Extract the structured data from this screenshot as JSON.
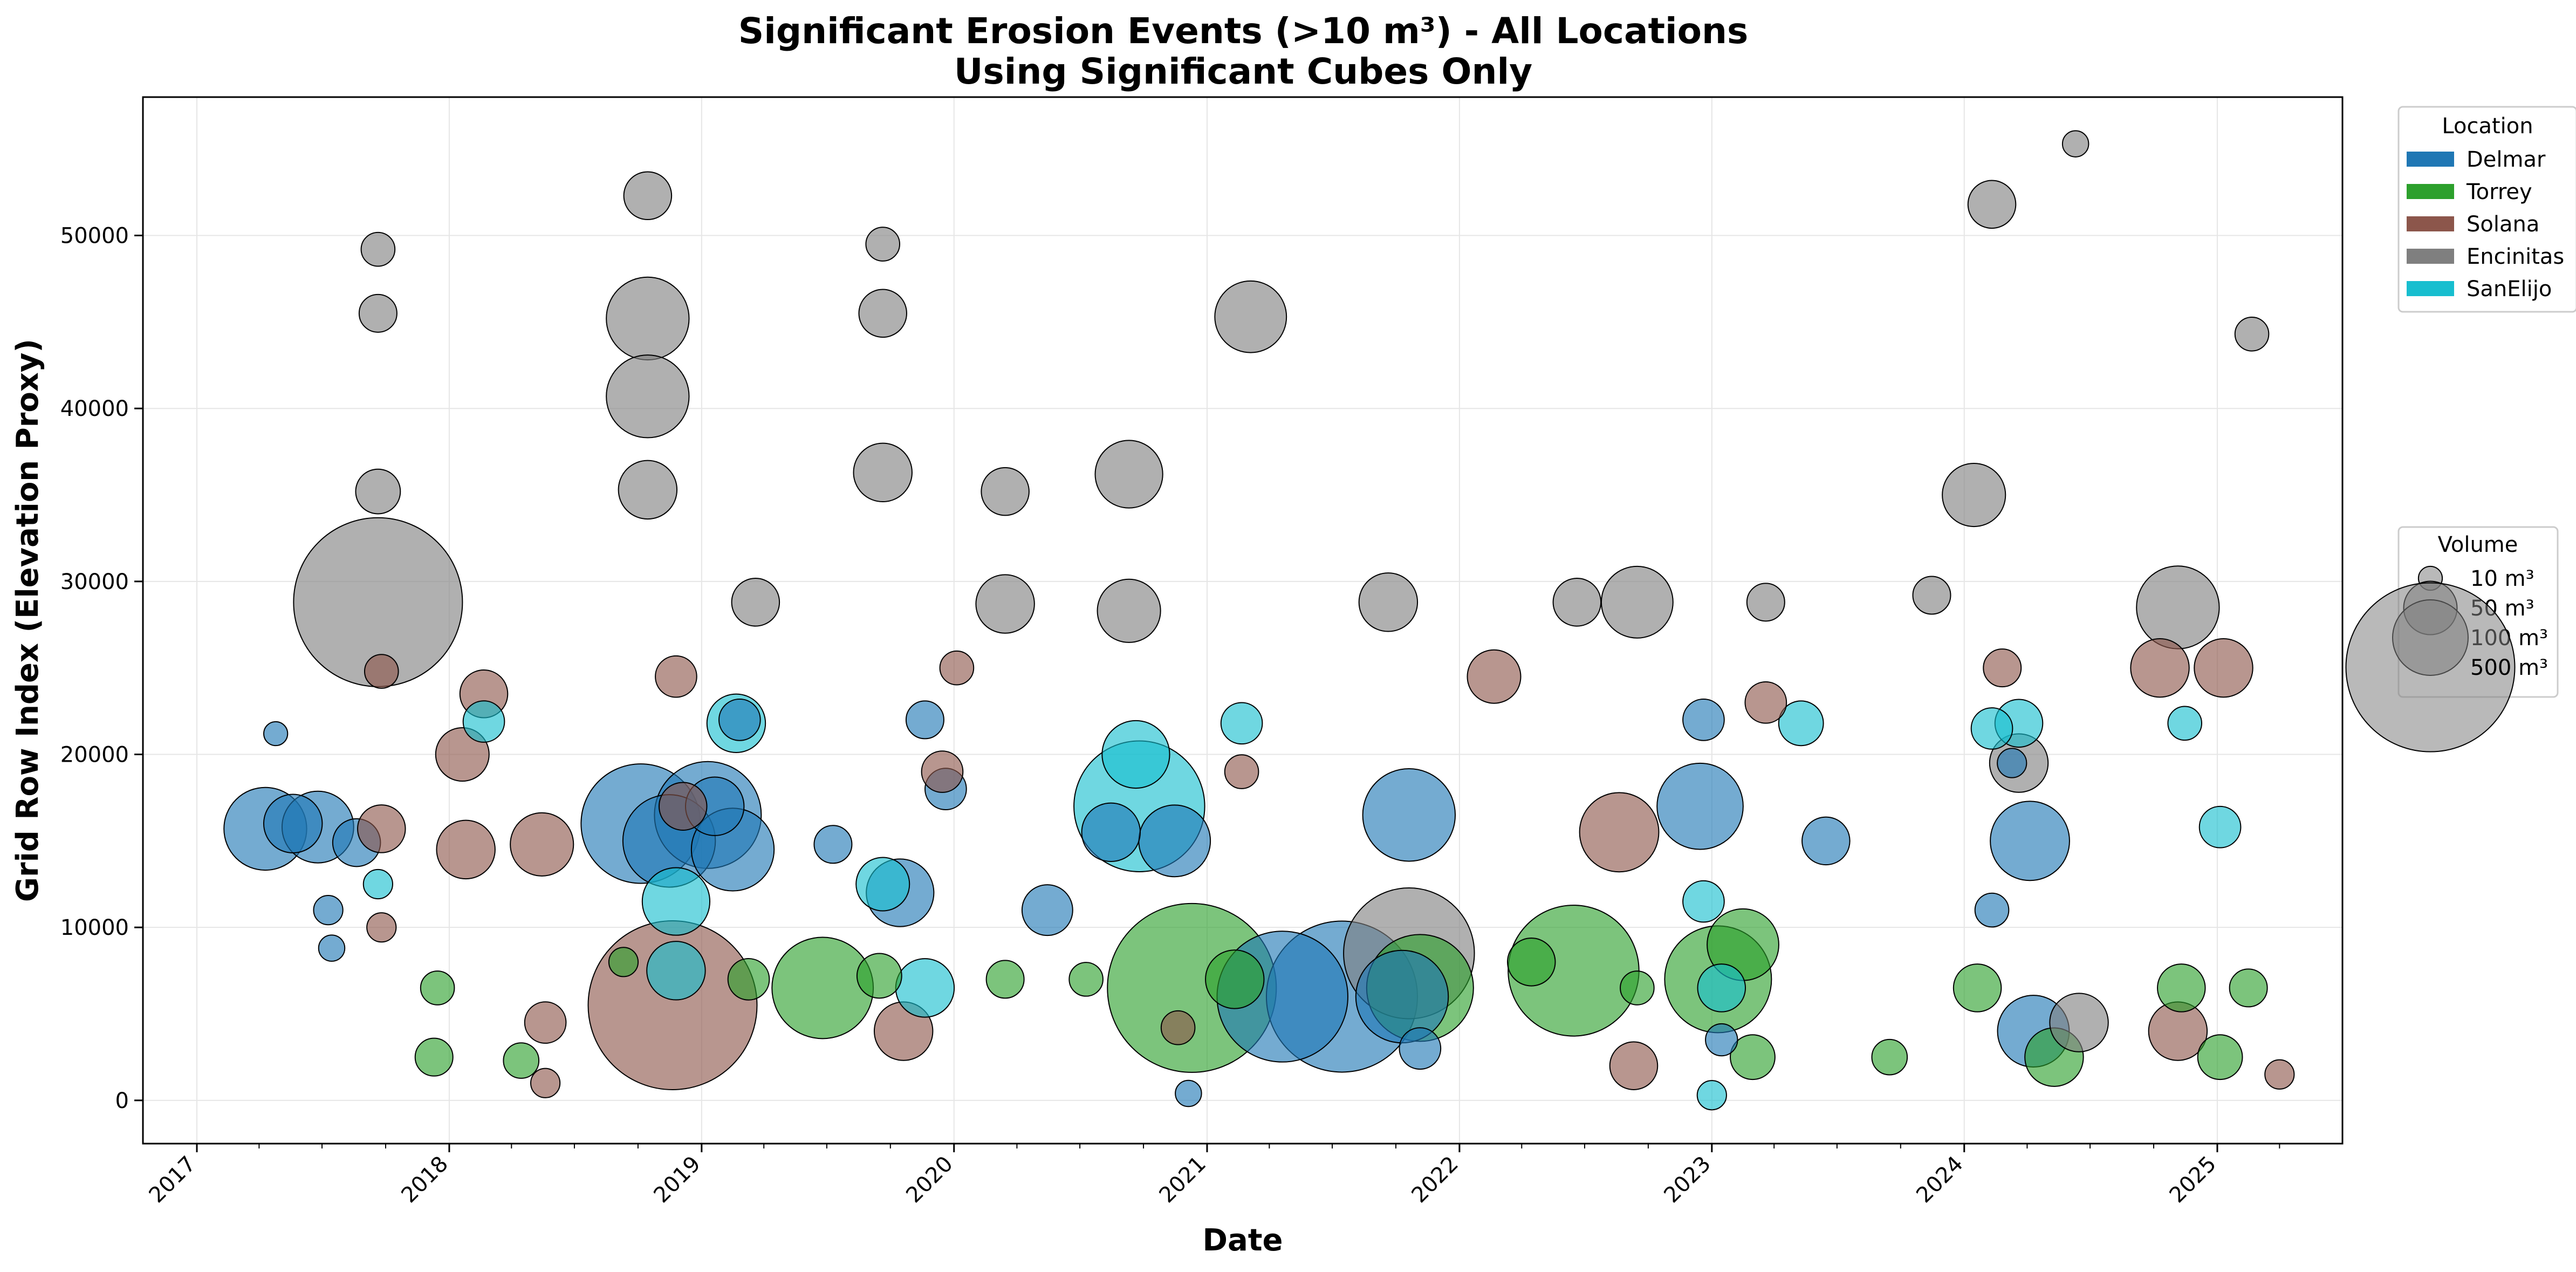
{
  "chart_data": {
    "type": "scatter",
    "title": "Significant Erosion Events (>10 m³) - All Locations",
    "subtitle": "Using Significant Cubes Only",
    "xlabel": "Date",
    "ylabel": "Grid Row Index (Elevation Proxy)",
    "x_ticks": [
      "2017",
      "2018",
      "2019",
      "2020",
      "2021",
      "2022",
      "2023",
      "2024",
      "2025"
    ],
    "y_ticks": [
      "0",
      "10000",
      "20000",
      "30000",
      "40000",
      "50000"
    ],
    "xlim": [
      "2016-10-15",
      "2025-07-01"
    ],
    "ylim": [
      -2500,
      58000
    ],
    "grid": true,
    "legend_placement": "outside right",
    "location_legend": {
      "title": "Location",
      "items": [
        {
          "name": "Delmar",
          "color": "#1f77b4"
        },
        {
          "name": "Torrey",
          "color": "#2ca02c"
        },
        {
          "name": "Solana",
          "color": "#8c564b"
        },
        {
          "name": "Encinitas",
          "color": "#7f7f7f"
        },
        {
          "name": "SanElijo",
          "color": "#17becf"
        }
      ]
    },
    "volume_legend": {
      "title": "Volume",
      "items": [
        {
          "label": "10 m³",
          "volume": 10
        },
        {
          "label": "50 m³",
          "volume": 50
        },
        {
          "label": "100 m³",
          "volume": 100
        },
        {
          "label": "500 m³",
          "volume": 500
        }
      ]
    },
    "series": [
      {
        "name": "Delmar",
        "color": "#1f77b4",
        "points": [
          {
            "x": "2017-04-10",
            "y": 15700,
            "volume": 120
          },
          {
            "x": "2017-05-20",
            "y": 16000,
            "volume": 60
          },
          {
            "x": "2017-06-25",
            "y": 15800,
            "volume": 90
          },
          {
            "x": "2017-07-10",
            "y": 11000,
            "volume": 15
          },
          {
            "x": "2017-07-15",
            "y": 8800,
            "volume": 12
          },
          {
            "x": "2017-08-20",
            "y": 14900,
            "volume": 40
          },
          {
            "x": "2017-04-25",
            "y": 21200,
            "volume": 10
          },
          {
            "x": "2018-10-05",
            "y": 16000,
            "volume": 250
          },
          {
            "x": "2018-11-15",
            "y": 15000,
            "volume": 150
          },
          {
            "x": "2019-01-10",
            "y": 16500,
            "volume": 200
          },
          {
            "x": "2019-02-15",
            "y": 14500,
            "volume": 120
          },
          {
            "x": "2019-01-20",
            "y": 17000,
            "volume": 60
          },
          {
            "x": "2019-02-25",
            "y": 22000,
            "volume": 30
          },
          {
            "x": "2019-07-10",
            "y": 14800,
            "volume": 25
          },
          {
            "x": "2019-10-15",
            "y": 12000,
            "volume": 80
          },
          {
            "x": "2019-12-20",
            "y": 18000,
            "volume": 30
          },
          {
            "x": "2019-11-20",
            "y": 22000,
            "volume": 25
          },
          {
            "x": "2020-05-15",
            "y": 11000,
            "volume": 45
          },
          {
            "x": "2020-08-15",
            "y": 15500,
            "volume": 60
          },
          {
            "x": "2020-11-15",
            "y": 15000,
            "volume": 90
          },
          {
            "x": "2021-04-20",
            "y": 6000,
            "volume": 300
          },
          {
            "x": "2021-07-15",
            "y": 6000,
            "volume": 400
          },
          {
            "x": "2021-10-20",
            "y": 16500,
            "volume": 150
          },
          {
            "x": "2021-11-05",
            "y": 3000,
            "volume": 30
          },
          {
            "x": "2021-10-10",
            "y": 6000,
            "volume": 150
          },
          {
            "x": "2020-12-05",
            "y": 400,
            "volume": 12
          },
          {
            "x": "2022-12-15",
            "y": 17000,
            "volume": 130
          },
          {
            "x": "2022-12-20",
            "y": 22000,
            "volume": 30
          },
          {
            "x": "2023-01-15",
            "y": 3500,
            "volume": 18
          },
          {
            "x": "2023-06-15",
            "y": 15000,
            "volume": 40
          },
          {
            "x": "2024-04-05",
            "y": 15000,
            "volume": 110
          },
          {
            "x": "2024-04-10",
            "y": 4000,
            "volume": 90
          },
          {
            "x": "2024-02-10",
            "y": 11000,
            "volume": 20
          },
          {
            "x": "2024-03-10",
            "y": 19500,
            "volume": 15
          }
        ]
      },
      {
        "name": "Torrey",
        "color": "#2ca02c",
        "points": [
          {
            "x": "2017-12-10",
            "y": 2500,
            "volume": 25
          },
          {
            "x": "2017-12-15",
            "y": 6500,
            "volume": 20
          },
          {
            "x": "2018-04-15",
            "y": 2300,
            "volume": 22
          },
          {
            "x": "2018-09-10",
            "y": 8000,
            "volume": 15
          },
          {
            "x": "2019-03-10",
            "y": 7000,
            "volume": 30
          },
          {
            "x": "2019-06-25",
            "y": 6500,
            "volume": 180
          },
          {
            "x": "2019-09-15",
            "y": 7200,
            "volume": 35
          },
          {
            "x": "2020-03-15",
            "y": 7000,
            "volume": 25
          },
          {
            "x": "2020-07-10",
            "y": 7000,
            "volume": 20
          },
          {
            "x": "2020-12-10",
            "y": 6500,
            "volume": 500
          },
          {
            "x": "2021-02-10",
            "y": 7000,
            "volume": 60
          },
          {
            "x": "2021-11-05",
            "y": 6500,
            "volume": 200
          },
          {
            "x": "2022-04-15",
            "y": 8000,
            "volume": 40
          },
          {
            "x": "2022-06-15",
            "y": 7500,
            "volume": 300
          },
          {
            "x": "2022-09-15",
            "y": 6500,
            "volume": 20
          },
          {
            "x": "2023-01-10",
            "y": 7000,
            "volume": 200
          },
          {
            "x": "2023-02-15",
            "y": 9000,
            "volume": 90
          },
          {
            "x": "2023-03-01",
            "y": 2500,
            "volume": 35
          },
          {
            "x": "2023-09-15",
            "y": 2500,
            "volume": 22
          },
          {
            "x": "2024-05-10",
            "y": 2500,
            "volume": 60
          },
          {
            "x": "2024-01-20",
            "y": 6500,
            "volume": 40
          },
          {
            "x": "2024-11-10",
            "y": 6500,
            "volume": 40
          },
          {
            "x": "2025-01-05",
            "y": 2500,
            "volume": 35
          },
          {
            "x": "2025-02-15",
            "y": 6500,
            "volume": 25
          }
        ]
      },
      {
        "name": "Solana",
        "color": "#8c564b",
        "points": [
          {
            "x": "2017-09-25",
            "y": 24800,
            "volume": 20
          },
          {
            "x": "2017-09-25",
            "y": 15700,
            "volume": 40
          },
          {
            "x": "2017-09-25",
            "y": 10000,
            "volume": 15
          },
          {
            "x": "2018-01-20",
            "y": 20000,
            "volume": 50
          },
          {
            "x": "2018-01-25",
            "y": 14500,
            "volume": 60
          },
          {
            "x": "2018-02-20",
            "y": 23500,
            "volume": 40
          },
          {
            "x": "2018-05-15",
            "y": 14800,
            "volume": 70
          },
          {
            "x": "2018-05-20",
            "y": 4500,
            "volume": 30
          },
          {
            "x": "2018-05-20",
            "y": 1000,
            "volume": 15
          },
          {
            "x": "2018-11-20",
            "y": 5500,
            "volume": 500
          },
          {
            "x": "2018-11-25",
            "y": 24500,
            "volume": 30
          },
          {
            "x": "2018-12-05",
            "y": 17000,
            "volume": 40
          },
          {
            "x": "2019-10-20",
            "y": 4000,
            "volume": 60
          },
          {
            "x": "2019-12-15",
            "y": 19000,
            "volume": 30
          },
          {
            "x": "2020-01-05",
            "y": 25000,
            "volume": 20
          },
          {
            "x": "2020-11-20",
            "y": 4200,
            "volume": 20
          },
          {
            "x": "2021-02-20",
            "y": 19000,
            "volume": 20
          },
          {
            "x": "2022-02-20",
            "y": 24500,
            "volume": 50
          },
          {
            "x": "2022-08-20",
            "y": 15500,
            "volume": 110
          },
          {
            "x": "2022-09-10",
            "y": 2000,
            "volume": 40
          },
          {
            "x": "2023-03-20",
            "y": 23000,
            "volume": 30
          },
          {
            "x": "2024-02-25",
            "y": 25000,
            "volume": 25
          },
          {
            "x": "2024-10-10",
            "y": 25000,
            "volume": 60
          },
          {
            "x": "2024-11-05",
            "y": 4000,
            "volume": 60
          },
          {
            "x": "2025-01-10",
            "y": 25000,
            "volume": 60
          },
          {
            "x": "2025-04-01",
            "y": 1500,
            "volume": 15
          }
        ]
      },
      {
        "name": "Encinitas",
        "color": "#7f7f7f",
        "points": [
          {
            "x": "2017-09-20",
            "y": 49200,
            "volume": 20
          },
          {
            "x": "2017-09-20",
            "y": 45500,
            "volume": 25
          },
          {
            "x": "2017-09-20",
            "y": 35200,
            "volume": 35
          },
          {
            "x": "2017-09-20",
            "y": 28800,
            "volume": 500
          },
          {
            "x": "2018-10-15",
            "y": 52300,
            "volume": 40
          },
          {
            "x": "2018-10-15",
            "y": 45200,
            "volume": 120
          },
          {
            "x": "2018-10-15",
            "y": 40700,
            "volume": 120
          },
          {
            "x": "2018-10-15",
            "y": 35300,
            "volume": 60
          },
          {
            "x": "2019-03-20",
            "y": 28800,
            "volume": 40
          },
          {
            "x": "2019-09-20",
            "y": 36300,
            "volume": 60
          },
          {
            "x": "2019-09-20",
            "y": 45500,
            "volume": 40
          },
          {
            "x": "2019-09-20",
            "y": 49500,
            "volume": 20
          },
          {
            "x": "2020-03-15",
            "y": 28700,
            "volume": 60
          },
          {
            "x": "2020-03-15",
            "y": 35200,
            "volume": 40
          },
          {
            "x": "2020-09-10",
            "y": 36200,
            "volume": 80
          },
          {
            "x": "2020-09-10",
            "y": 28300,
            "volume": 70
          },
          {
            "x": "2021-03-05",
            "y": 45300,
            "volume": 90
          },
          {
            "x": "2021-09-20",
            "y": 28800,
            "volume": 60
          },
          {
            "x": "2021-10-20",
            "y": 8500,
            "volume": 300
          },
          {
            "x": "2022-06-20",
            "y": 28800,
            "volume": 40
          },
          {
            "x": "2022-09-15",
            "y": 28800,
            "volume": 90
          },
          {
            "x": "2023-03-20",
            "y": 28800,
            "volume": 25
          },
          {
            "x": "2023-11-15",
            "y": 29200,
            "volume": 25
          },
          {
            "x": "2024-01-15",
            "y": 35000,
            "volume": 70
          },
          {
            "x": "2024-02-10",
            "y": 51800,
            "volume": 40
          },
          {
            "x": "2024-03-20",
            "y": 19500,
            "volume": 60
          },
          {
            "x": "2024-06-15",
            "y": 4500,
            "volume": 60
          },
          {
            "x": "2024-11-05",
            "y": 28500,
            "volume": 120
          },
          {
            "x": "2024-06-10",
            "y": 55300,
            "volume": 12
          },
          {
            "x": "2025-02-20",
            "y": 44300,
            "volume": 20
          }
        ]
      },
      {
        "name": "SanElijo",
        "color": "#17becf",
        "points": [
          {
            "x": "2017-09-20",
            "y": 12500,
            "volume": 15
          },
          {
            "x": "2018-02-20",
            "y": 21900,
            "volume": 30
          },
          {
            "x": "2018-11-25",
            "y": 11500,
            "volume": 80
          },
          {
            "x": "2018-11-25",
            "y": 7500,
            "volume": 60
          },
          {
            "x": "2019-02-20",
            "y": 21800,
            "volume": 60
          },
          {
            "x": "2019-09-20",
            "y": 12500,
            "volume": 50
          },
          {
            "x": "2019-11-20",
            "y": 6500,
            "volume": 60
          },
          {
            "x": "2020-09-20",
            "y": 20000,
            "volume": 80
          },
          {
            "x": "2020-09-25",
            "y": 17000,
            "volume": 300
          },
          {
            "x": "2021-02-20",
            "y": 21800,
            "volume": 30
          },
          {
            "x": "2022-12-20",
            "y": 11500,
            "volume": 30
          },
          {
            "x": "2023-01-15",
            "y": 6500,
            "volume": 40
          },
          {
            "x": "2023-05-10",
            "y": 21800,
            "volume": 35
          },
          {
            "x": "2024-02-10",
            "y": 21500,
            "volume": 30
          },
          {
            "x": "2024-03-20",
            "y": 21800,
            "volume": 40
          },
          {
            "x": "2024-11-15",
            "y": 21800,
            "volume": 20
          },
          {
            "x": "2025-01-05",
            "y": 15800,
            "volume": 30
          },
          {
            "x": "2023-01-01",
            "y": 300,
            "volume": 15
          }
        ]
      }
    ]
  }
}
